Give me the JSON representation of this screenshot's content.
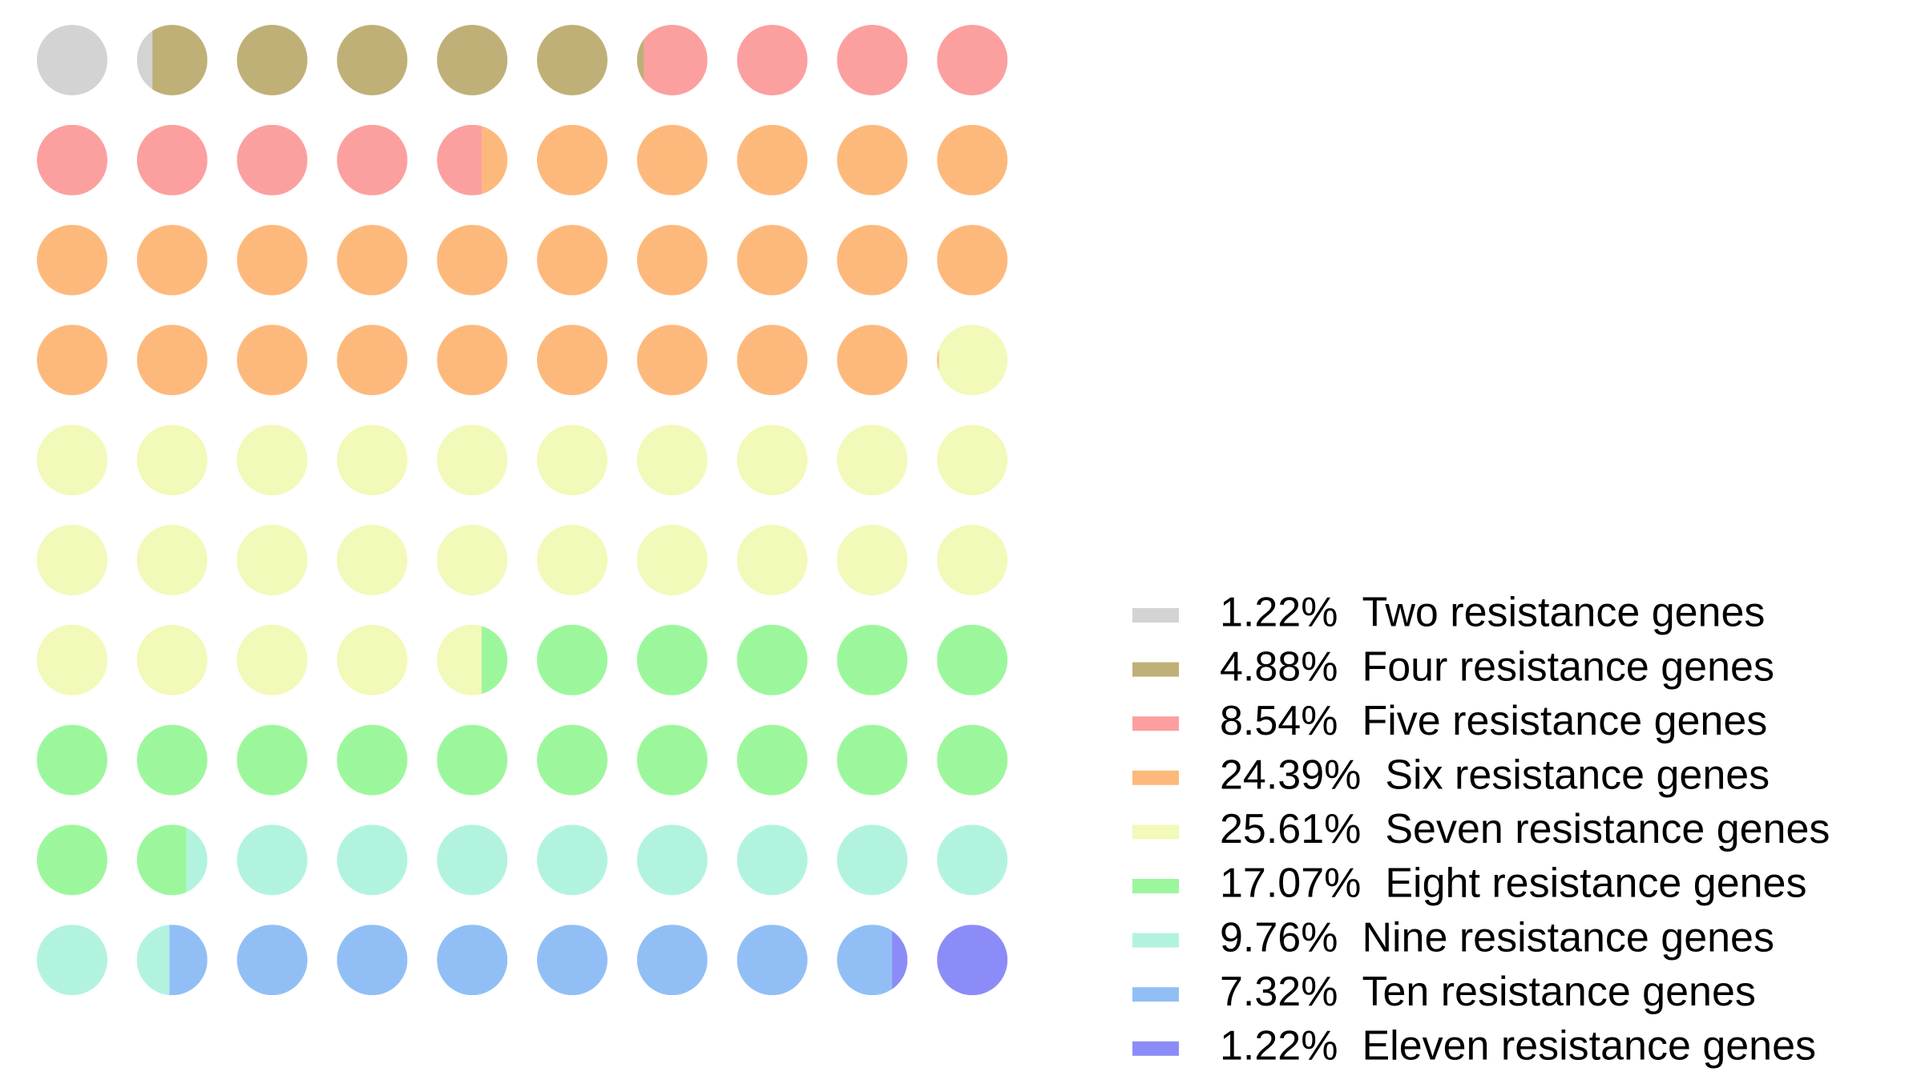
{
  "chart_data": {
    "type": "waffle",
    "categories": [
      "Two resistance genes",
      "Four resistance genes",
      "Five resistance genes",
      "Six resistance genes",
      "Seven resistance genes",
      "Eight resistance genes",
      "Nine resistance genes",
      "Ten resistance genes",
      "Eleven resistance genes"
    ],
    "values": [
      1.22,
      4.88,
      8.54,
      24.39,
      25.61,
      17.07,
      9.76,
      7.32,
      1.22
    ],
    "value_labels": [
      "1.22%",
      "4.88%",
      "8.54%",
      "24.39%",
      "25.61%",
      "17.07%",
      "9.76%",
      "7.32%",
      "1.22%"
    ],
    "colors": [
      "#d3d3d3",
      "#bfb077",
      "#fc9f9f",
      "#fdb97c",
      "#f2f9b9",
      "#9cf79c",
      "#b2f3e0",
      "#91bff5",
      "#8c8cf8"
    ],
    "legend": "bottom-right"
  }
}
